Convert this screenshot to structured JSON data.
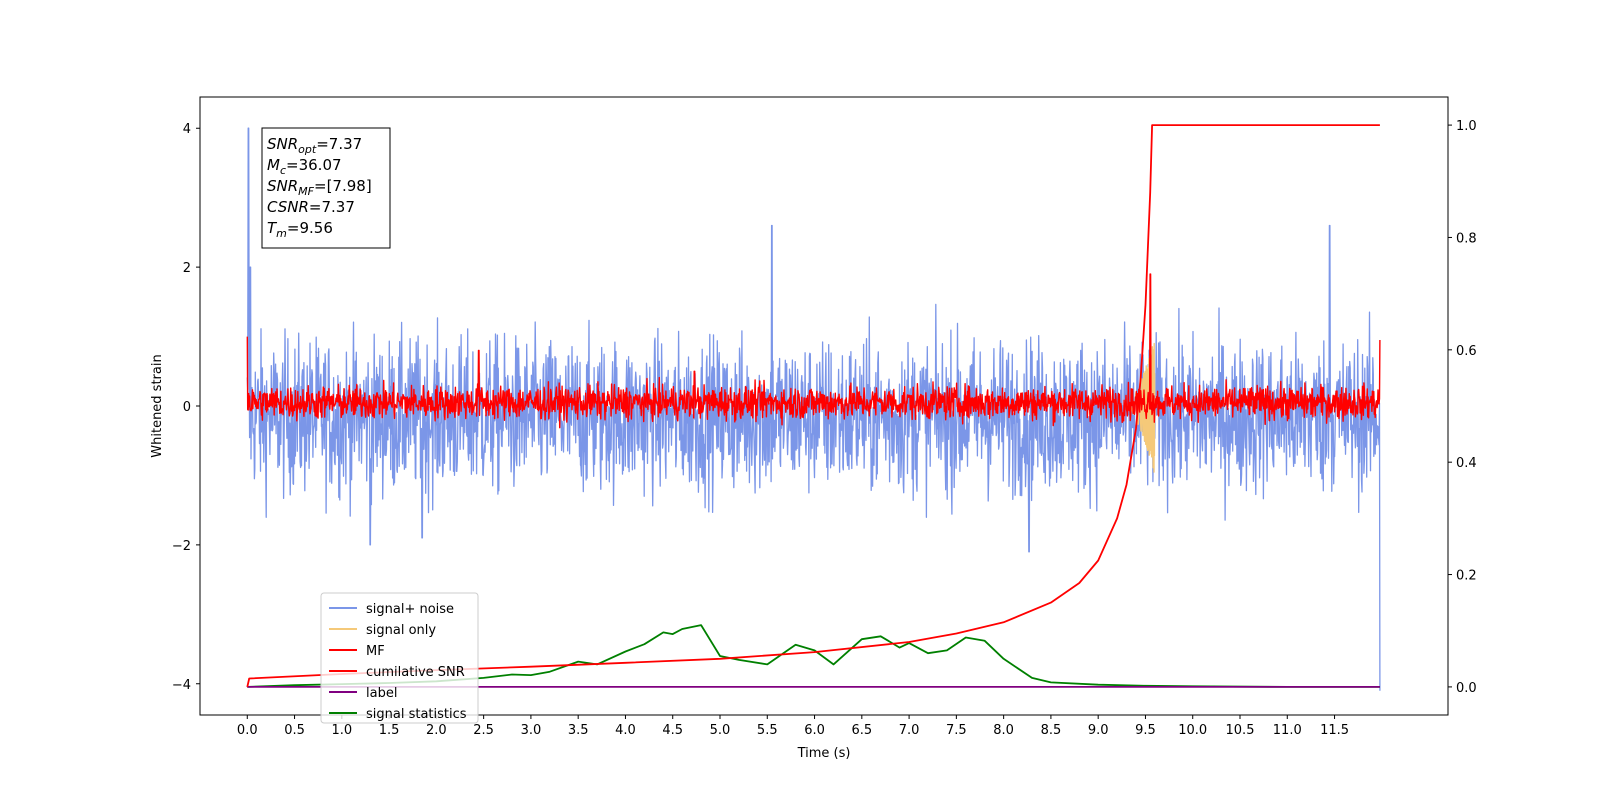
{
  "chart_data": {
    "type": "line",
    "xlabel": "Time (s)",
    "ylabel": "Whitened strain",
    "xlim": [
      -0.5,
      12.7
    ],
    "ylim": [
      -4.45,
      4.45
    ],
    "y2lim": [
      -0.05,
      1.05
    ],
    "x_ticks": [
      0.0,
      0.5,
      1.0,
      1.5,
      2.0,
      2.5,
      3.0,
      3.5,
      4.0,
      4.5,
      5.0,
      5.5,
      6.0,
      6.5,
      7.0,
      7.5,
      8.0,
      8.5,
      9.0,
      9.5,
      10.0,
      10.5,
      11.0,
      11.5
    ],
    "x_tick_labels": [
      "0.0",
      "0.5",
      "1.0",
      "1.5",
      "2.0",
      "2.5",
      "3.0",
      "3.5",
      "4.0",
      "4.5",
      "5.0",
      "5.5",
      "6.0",
      "6.5",
      "7.0",
      "7.5",
      "8.0",
      "8.5",
      "9.0",
      "9.5",
      "10.0",
      "10.5",
      "11.0",
      "11.5"
    ],
    "y_ticks": [
      -4,
      -2,
      0,
      2,
      4
    ],
    "y_tick_labels": [
      "−4",
      "−2",
      "0",
      "2",
      "4"
    ],
    "y2_ticks": [
      0.0,
      0.2,
      0.4,
      0.6,
      0.8,
      1.0
    ],
    "y2_tick_labels": [
      "0.0",
      "0.2",
      "0.4",
      "0.6",
      "0.8",
      "1.0"
    ],
    "grid": false,
    "legend_position": "lower-left",
    "annotations": [
      {
        "sym": "SNR",
        "sub": "opt",
        "rest": "=7.37"
      },
      {
        "sym": "M",
        "sub": "c",
        "rest": "=36.07"
      },
      {
        "sym": "SNR",
        "sub": "MF",
        "rest": "=[7.98]"
      },
      {
        "sym": "CSNR",
        "sub": "",
        "rest": "=7.37"
      },
      {
        "sym": "T",
        "sub": "m",
        "rest": "=9.56"
      }
    ],
    "series": [
      {
        "name": "signal+ noise",
        "color": "#7b96e8",
        "axis": "left",
        "style": "noise",
        "x_range": [
          0.0,
          11.98
        ],
        "mean": -0.15,
        "spread": 0.55,
        "peaks": [
          [
            0.01,
            4.0
          ],
          [
            0.03,
            2.0
          ],
          [
            1.3,
            -2.0
          ],
          [
            1.85,
            -1.9
          ],
          [
            5.55,
            2.6
          ],
          [
            8.27,
            -2.1
          ],
          [
            11.45,
            2.6
          ],
          [
            11.98,
            -4.1
          ]
        ]
      },
      {
        "name": "signal only",
        "color": "#f5c979",
        "axis": "left",
        "style": "chirp",
        "x_range": [
          9.3,
          9.6
        ],
        "amp": 1.0
      },
      {
        "name": "MF",
        "color": "#ff0000",
        "axis": "left",
        "style": "noise",
        "x_range": [
          0.0,
          11.98
        ],
        "mean": 0.05,
        "spread": 0.12,
        "peaks": [
          [
            0.0,
            1.0
          ],
          [
            2.45,
            0.8
          ],
          [
            4.73,
            0.5
          ],
          [
            9.55,
            1.9
          ],
          [
            11.98,
            0.95
          ]
        ]
      },
      {
        "name": "cumilative SNR",
        "color": "#ff0000",
        "axis": "right",
        "style": "curve",
        "x": [
          0.0,
          0.02,
          1.0,
          2.0,
          3.0,
          4.0,
          5.0,
          6.0,
          7.0,
          7.5,
          8.0,
          8.5,
          8.8,
          9.0,
          9.2,
          9.3,
          9.4,
          9.45,
          9.5,
          9.55,
          9.57,
          9.6,
          11.98
        ],
        "values": [
          0.0,
          0.015,
          0.023,
          0.03,
          0.036,
          0.043,
          0.05,
          0.062,
          0.08,
          0.095,
          0.115,
          0.15,
          0.185,
          0.225,
          0.3,
          0.36,
          0.46,
          0.55,
          0.68,
          0.88,
          1.0,
          1.0,
          1.0
        ]
      },
      {
        "name": "label",
        "color": "#800080",
        "axis": "right",
        "style": "curve",
        "x": [
          0.0,
          11.98
        ],
        "values": [
          0.0,
          0.0
        ]
      },
      {
        "name": "signal statistics",
        "color": "#008000",
        "axis": "right",
        "style": "curve",
        "x": [
          0.0,
          0.5,
          1.0,
          1.5,
          2.0,
          2.5,
          2.8,
          3.0,
          3.2,
          3.5,
          3.7,
          4.0,
          4.2,
          4.4,
          4.5,
          4.6,
          4.8,
          5.0,
          5.2,
          5.5,
          5.8,
          6.0,
          6.2,
          6.5,
          6.7,
          6.9,
          7.0,
          7.2,
          7.4,
          7.6,
          7.8,
          8.0,
          8.3,
          8.5,
          9.0,
          9.5,
          10.0,
          11.0,
          11.98
        ],
        "values": [
          0.0,
          0.003,
          0.005,
          0.007,
          0.01,
          0.016,
          0.022,
          0.021,
          0.027,
          0.045,
          0.04,
          0.063,
          0.076,
          0.097,
          0.094,
          0.103,
          0.11,
          0.055,
          0.048,
          0.04,
          0.075,
          0.065,
          0.04,
          0.085,
          0.09,
          0.07,
          0.078,
          0.06,
          0.065,
          0.088,
          0.082,
          0.05,
          0.016,
          0.008,
          0.004,
          0.002,
          0.001,
          0.0,
          0.0
        ]
      }
    ]
  }
}
